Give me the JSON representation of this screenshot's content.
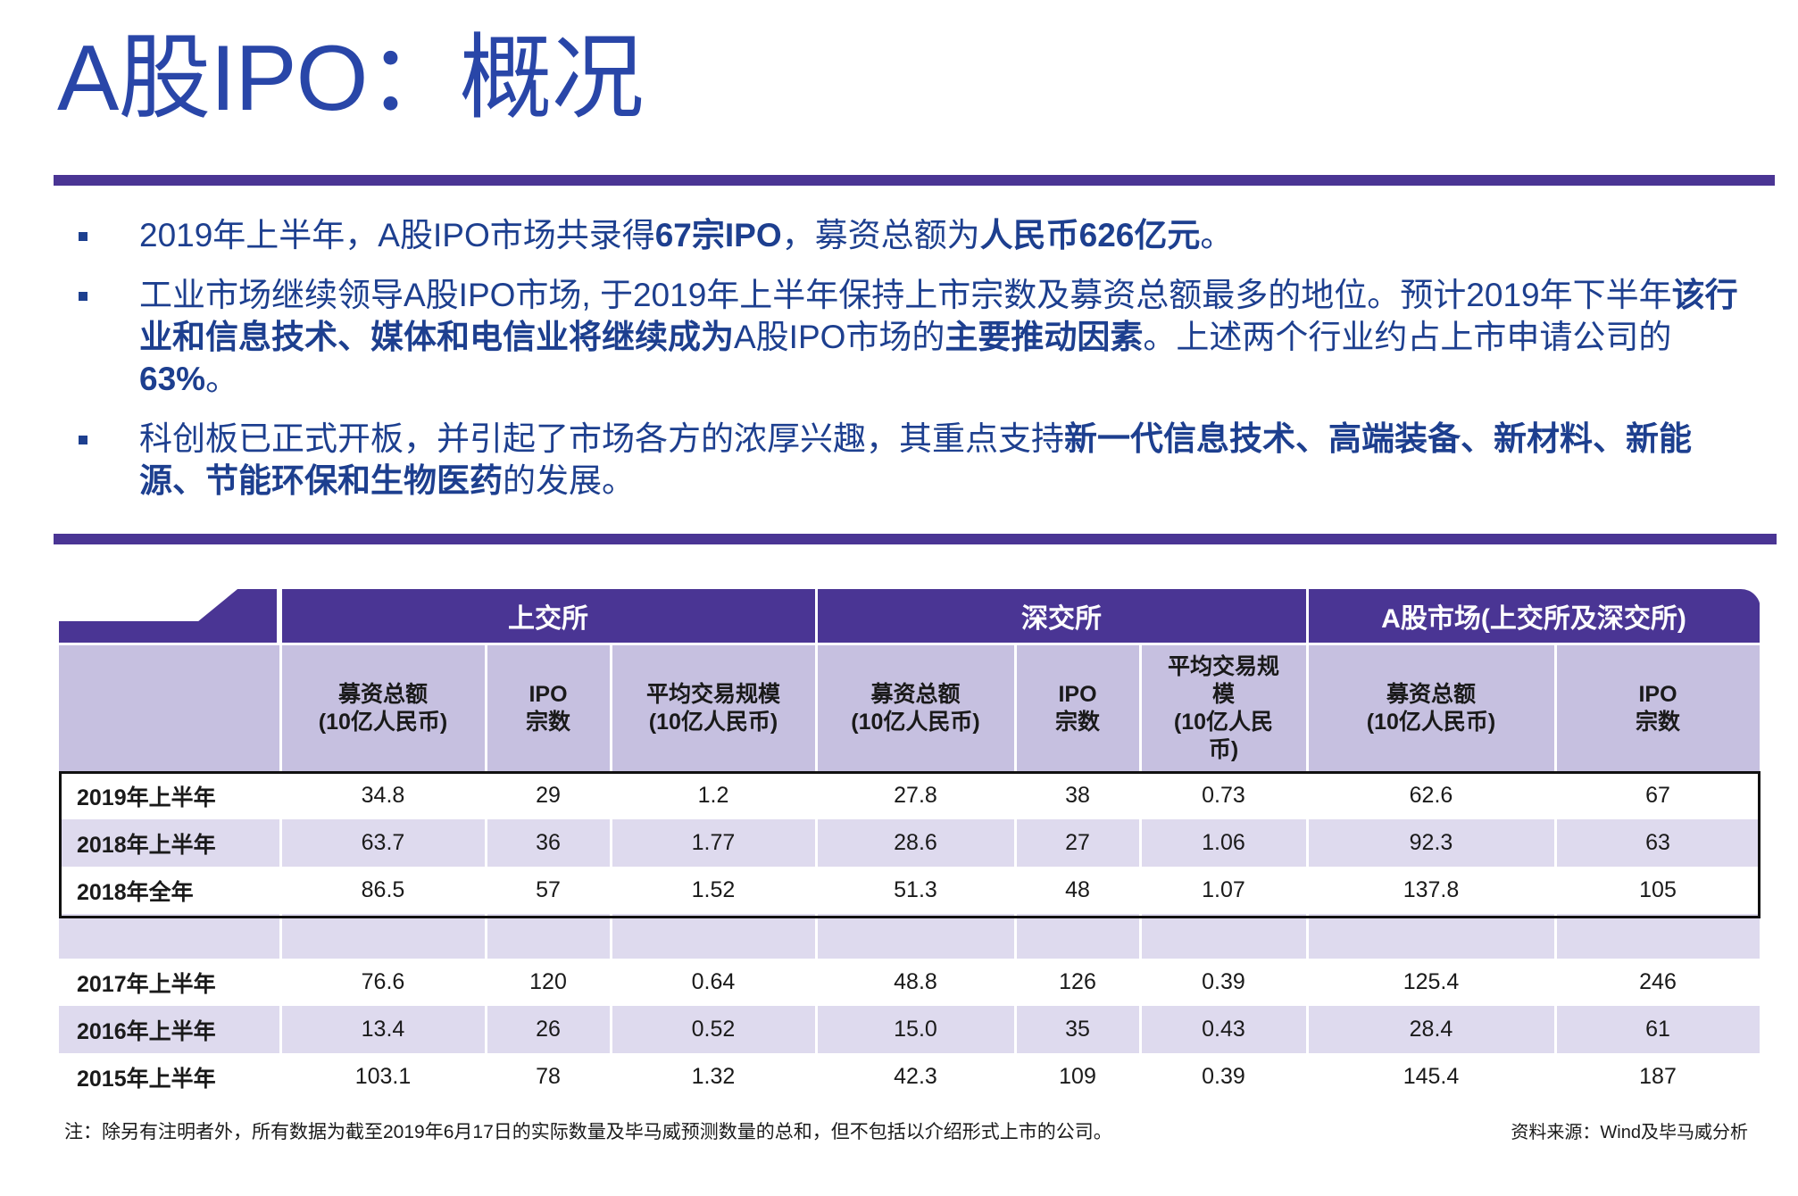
{
  "title": "A股IPO：概况",
  "bullets": [
    {
      "segments": [
        {
          "text": "2019年上半年，A股IPO市场共录得",
          "bold": false
        },
        {
          "text": "67宗IPO",
          "bold": true
        },
        {
          "text": "，募资总额为",
          "bold": false
        },
        {
          "text": "人民币626亿元",
          "bold": true
        },
        {
          "text": "。",
          "bold": false
        }
      ]
    },
    {
      "segments": [
        {
          "text": "工业市场继续领导A股IPO市场, 于2019年上半年保持上市宗数及募资总额最多的地位。预计2019年下半年",
          "bold": false
        },
        {
          "text": "该行业和信息技术、媒体和电信业将继续成为",
          "bold": true
        },
        {
          "text": "A股IPO市场的",
          "bold": false
        },
        {
          "text": "主要推动因素",
          "bold": true
        },
        {
          "text": "。上述两个行业约占上市申请公司的",
          "bold": false
        },
        {
          "text": "63%",
          "bold": true
        },
        {
          "text": "。",
          "bold": false
        }
      ]
    },
    {
      "segments": [
        {
          "text": "科创板已正式开板，并引起了市场各方的浓厚兴趣，其重点支持",
          "bold": false
        },
        {
          "text": "新一代信息技术、高端装备、新材料、新能源、节能环保和生物医药",
          "bold": true
        },
        {
          "text": "的发展。",
          "bold": false
        }
      ]
    }
  ],
  "table": {
    "groups": [
      "上交所",
      "深交所",
      "A股市场(上交所及深交所)"
    ],
    "columns": [
      "募资总额\n(10亿人民币)",
      "IPO\n宗数",
      "平均交易规模\n(10亿人民币)",
      "募资总额\n(10亿人民币)",
      "IPO\n宗数",
      "平均交易规\n模\n(10亿人民\n币)",
      "募资总额\n(10亿人民币)",
      "IPO\n宗数"
    ],
    "rows": [
      {
        "label": "2019年上半年",
        "values": [
          "34.8",
          "29",
          "1.2",
          "27.8",
          "38",
          "0.73",
          "62.6",
          "67"
        ]
      },
      {
        "label": "2018年上半年",
        "values": [
          "63.7",
          "36",
          "1.77",
          "28.6",
          "27",
          "1.06",
          "92.3",
          "63"
        ]
      },
      {
        "label": "2018年全年",
        "values": [
          "86.5",
          "57",
          "1.52",
          "51.3",
          "48",
          "1.07",
          "137.8",
          "105"
        ]
      },
      {
        "label": "2017年上半年",
        "values": [
          "76.6",
          "120",
          "0.64",
          "48.8",
          "126",
          "0.39",
          "125.4",
          "246"
        ]
      },
      {
        "label": "2016年上半年",
        "values": [
          "13.4",
          "26",
          "0.52",
          "15.0",
          "35",
          "0.43",
          "28.4",
          "61"
        ]
      },
      {
        "label": "2015年上半年",
        "values": [
          "103.1",
          "78",
          "1.32",
          "42.3",
          "109",
          "0.39",
          "145.4",
          "187"
        ]
      }
    ]
  },
  "note": "注：除另有注明者外，所有数据为截至2019年6月17日的实际数量及毕马威预测数量的总和，但不包括以介绍形式上市的公司。",
  "source": "资料来源：Wind及毕马威分析",
  "colors": {
    "accent": "#4a3594",
    "text": "#1d3f8f",
    "header_light": "#c6c0e0",
    "band": "#dedaee"
  }
}
